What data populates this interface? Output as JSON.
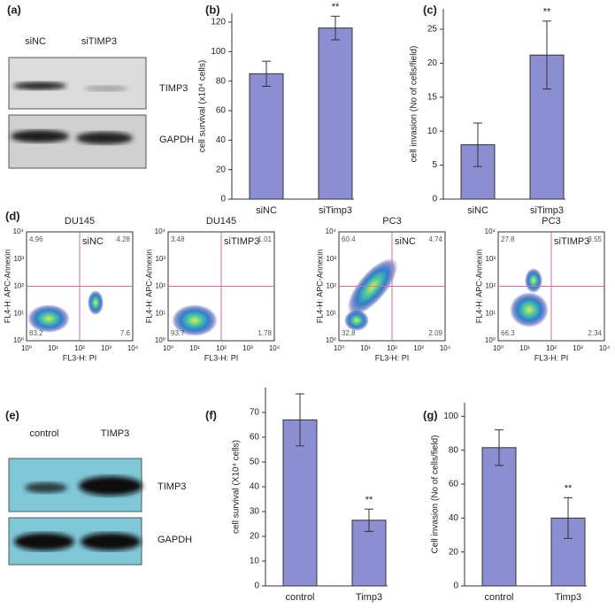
{
  "panel_labels": [
    "(a)",
    "(b)",
    "(c)",
    "(d)",
    "(e)",
    "(f)",
    "(g)"
  ],
  "blots": {
    "a": {
      "lanes": [
        "siNC",
        "siTIMP3"
      ],
      "bands": [
        "TIMP3",
        "GAPDH"
      ]
    },
    "e": {
      "lanes": [
        "control",
        "TIMP3"
      ],
      "bands": [
        "TIMP3",
        "GAPDH"
      ]
    }
  },
  "flow": {
    "x_label": "FL3-H: PI",
    "y_label": "FL4-H: APC-Annexin",
    "ticks": [
      "10⁰",
      "10¹",
      "10²",
      "10³",
      "10⁴"
    ],
    "plots": [
      {
        "title": "DU145",
        "label": "siNC",
        "quadrants": [
          4.96,
          4.28,
          83.2,
          7.6
        ]
      },
      {
        "title": "DU145",
        "label": "siTIMP3",
        "quadrants": [
          3.48,
          1.01,
          93.7,
          1.78
        ]
      },
      {
        "title": "PC3",
        "label": "siNC",
        "quadrants": [
          60.4,
          4.74,
          32.8,
          2.09
        ]
      },
      {
        "title": "PC3",
        "label": "siTIMP3",
        "quadrants": [
          27.8,
          3.55,
          66.3,
          2.34
        ]
      }
    ]
  },
  "chart_data": [
    {
      "type": "bar",
      "y_label": "cell survival (x10⁴ cells)",
      "categories": [
        "siNC",
        "siTimp3"
      ],
      "values": [
        85,
        116
      ],
      "errors": [
        8.5,
        8
      ],
      "annotations": [
        "",
        "**"
      ],
      "color": "#8b8fd1",
      "ylim": [
        0,
        126
      ],
      "yticks": [
        0,
        20,
        40,
        60,
        80,
        100,
        120
      ]
    },
    {
      "type": "bar",
      "y_label": "cell invasion (No of cells/field)",
      "categories": [
        "siNC",
        "siTimp3"
      ],
      "values": [
        8,
        21.2
      ],
      "errors": [
        3.2,
        5
      ],
      "annotations": [
        "",
        "**"
      ],
      "color": "#8b8fd1",
      "ylim": [
        0,
        28
      ],
      "yticks": [
        0,
        5,
        10,
        15,
        20,
        25
      ]
    },
    {
      "type": "bar",
      "y_label": "cell survival (X10⁴ cells)",
      "categories": [
        "control",
        "Timp3"
      ],
      "values": [
        67,
        26.5
      ],
      "errors": [
        10.5,
        4.5
      ],
      "annotations": [
        "",
        "**"
      ],
      "color": "#8b8fd1",
      "ylim": [
        0,
        80
      ],
      "yticks": [
        0,
        10,
        20,
        30,
        40,
        50,
        60,
        70
      ]
    },
    {
      "type": "bar",
      "y_label": "Cell invasion (No of cells/field)",
      "categories": [
        "control",
        "Timp3"
      ],
      "values": [
        81.5,
        40
      ],
      "errors": [
        10.5,
        12
      ],
      "annotations": [
        "",
        "**"
      ],
      "color": "#8b8fd1",
      "ylim": [
        0,
        108
      ],
      "yticks": [
        0,
        20,
        40,
        60,
        80,
        100
      ]
    }
  ]
}
